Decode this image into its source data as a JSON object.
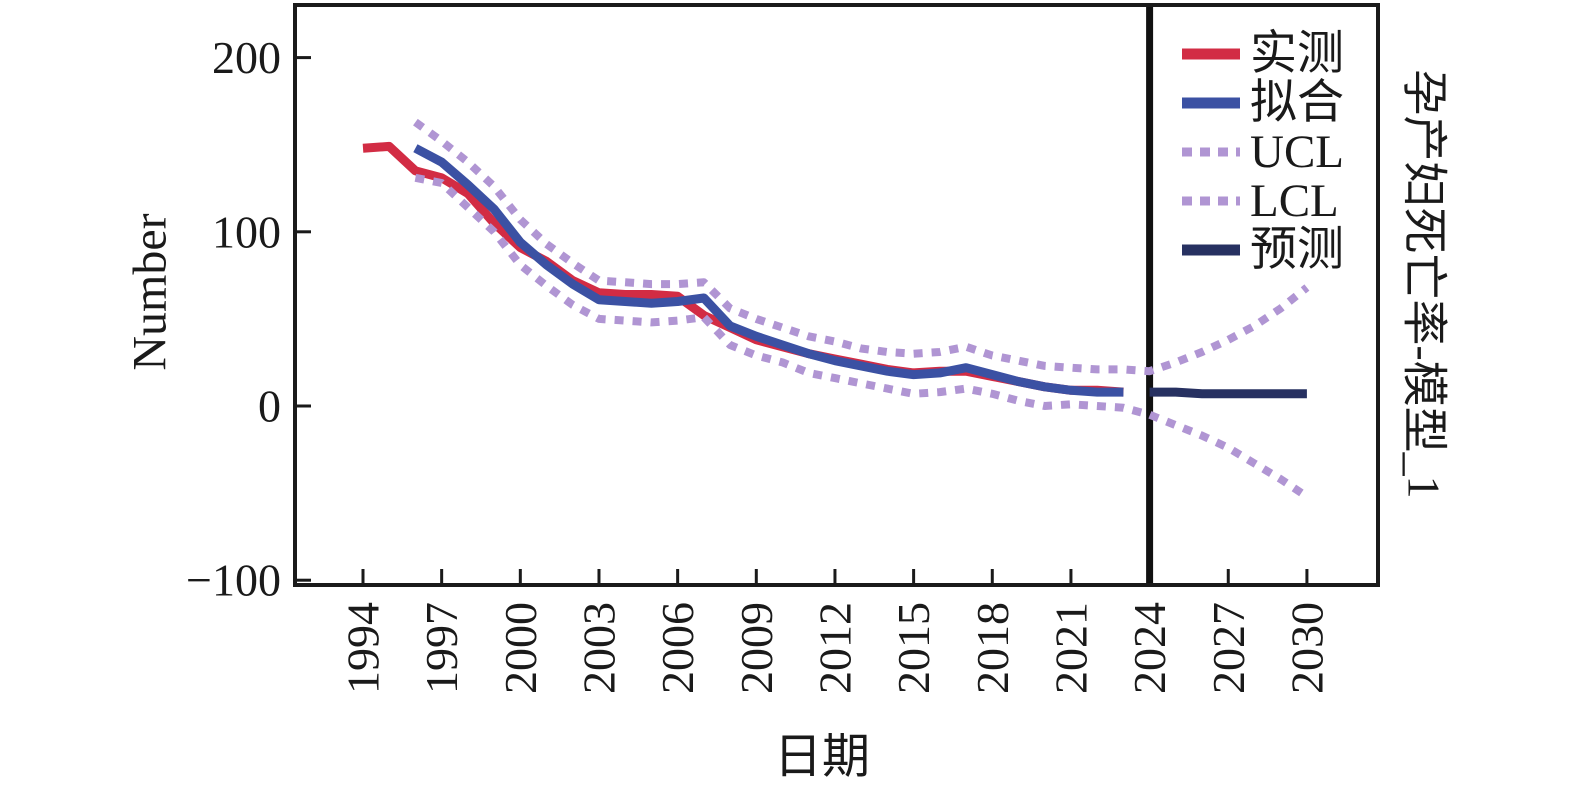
{
  "figure": {
    "ylabel": "Number",
    "xlabel": "日期",
    "right_label": "孕产妇死亡率-模型_1",
    "background": "#ffffff",
    "axis_color": "#1a1a1a"
  },
  "legend": {
    "position": "upper-right-inside-forecast-panel",
    "items": [
      {
        "label": "实测",
        "color": "#d22c44",
        "style": "solid"
      },
      {
        "label": "拟合",
        "color": "#3b51a3",
        "style": "solid"
      },
      {
        "label": "UCL",
        "color": "#b095d3",
        "style": "dashed"
      },
      {
        "label": "LCL",
        "color": "#b095d3",
        "style": "dashed"
      },
      {
        "label": "预测",
        "color": "#273161",
        "style": "solid"
      }
    ]
  },
  "chart_data": {
    "type": "line",
    "title": "孕产妇死亡率-模型_1",
    "xlabel": "日期",
    "ylabel": "Number",
    "xlim": [
      1991.4,
      2032.7
    ],
    "ylim": [
      -103,
      230
    ],
    "grid": false,
    "legend_position": "upper right",
    "forecast_divider_year": 2024,
    "xticks": [
      "1994",
      "1997",
      "2000",
      "2003",
      "2006",
      "2009",
      "2012",
      "2015",
      "2018",
      "2021",
      "2024",
      "2027",
      "2030"
    ],
    "ytick_labels": [
      "200",
      "100",
      "0",
      "−100"
    ],
    "ytick_values": [
      200,
      100,
      0,
      -100
    ],
    "series": [
      {
        "name": "实测",
        "role": "observed",
        "color": "#d22c44",
        "style": "solid",
        "start_year": 1994,
        "end_year": 2023,
        "values": [
          148,
          149,
          135,
          131,
          122,
          105,
          91,
          83,
          72,
          65,
          64,
          64,
          63,
          52,
          45,
          38,
          34,
          30,
          27,
          24,
          21,
          19,
          20,
          20,
          17,
          14,
          11,
          9,
          9,
          8
        ]
      },
      {
        "name": "拟合",
        "role": "fitted",
        "color": "#3b51a3",
        "style": "solid",
        "start_year": 1996,
        "end_year": 2023,
        "values": [
          148,
          140,
          127,
          113,
          94,
          81,
          70,
          61,
          60,
          59,
          60,
          62,
          46,
          40,
          35,
          30,
          26,
          23,
          20,
          18,
          19,
          22,
          18,
          14,
          11,
          9,
          8,
          8
        ]
      },
      {
        "name": "UCL",
        "role": "upper-confidence-limit",
        "color": "#b095d3",
        "style": "dashed",
        "start_year": 1996,
        "end_year": 2030,
        "values": [
          163,
          152,
          140,
          126,
          107,
          93,
          82,
          72,
          71,
          70,
          70,
          71,
          56,
          50,
          45,
          40,
          37,
          33,
          31,
          30,
          31,
          34,
          29,
          26,
          23,
          22,
          21,
          21,
          20,
          25,
          31,
          38,
          46,
          56,
          68
        ]
      },
      {
        "name": "LCL",
        "role": "lower-confidence-limit",
        "color": "#b095d3",
        "style": "dashed",
        "start_year": 1996,
        "end_year": 2030,
        "values": [
          131,
          128,
          114,
          100,
          81,
          69,
          58,
          50,
          49,
          48,
          49,
          51,
          35,
          29,
          25,
          19,
          16,
          13,
          10,
          7,
          8,
          10,
          7,
          3,
          0,
          1,
          0,
          -1,
          -5,
          -11,
          -17,
          -24,
          -33,
          -42,
          -52
        ]
      },
      {
        "name": "预测",
        "role": "forecast",
        "color": "#273161",
        "style": "solid",
        "start_year": 2024,
        "end_year": 2030,
        "values": [
          8,
          8,
          7,
          7,
          7,
          7,
          7
        ]
      }
    ]
  }
}
